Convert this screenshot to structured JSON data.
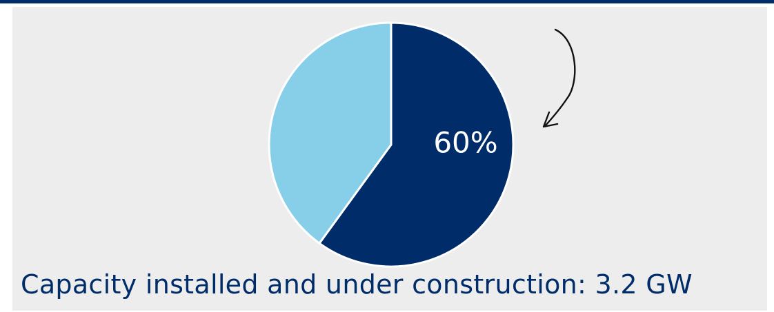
{
  "colors": {
    "header_rule": "#002d69",
    "panel_background": "#ededed",
    "caption_text": "#002d69",
    "data_label_text": "#ffffff",
    "slice_border": "#ffffff",
    "annotation_arrow": "#111111"
  },
  "caption": "Capacity installed and under construction: 3.2 GW",
  "chart_data": {
    "type": "pie",
    "title": "",
    "values": [
      60,
      40
    ],
    "colors": [
      "#002d69",
      "#87cfe8"
    ],
    "data_labels": [
      "60%",
      ""
    ],
    "start_angle": "12 o'clock",
    "direction": "clockwise",
    "annotation": {
      "kind": "hand-drawn curved arrow",
      "points_to": "60% slice"
    }
  }
}
